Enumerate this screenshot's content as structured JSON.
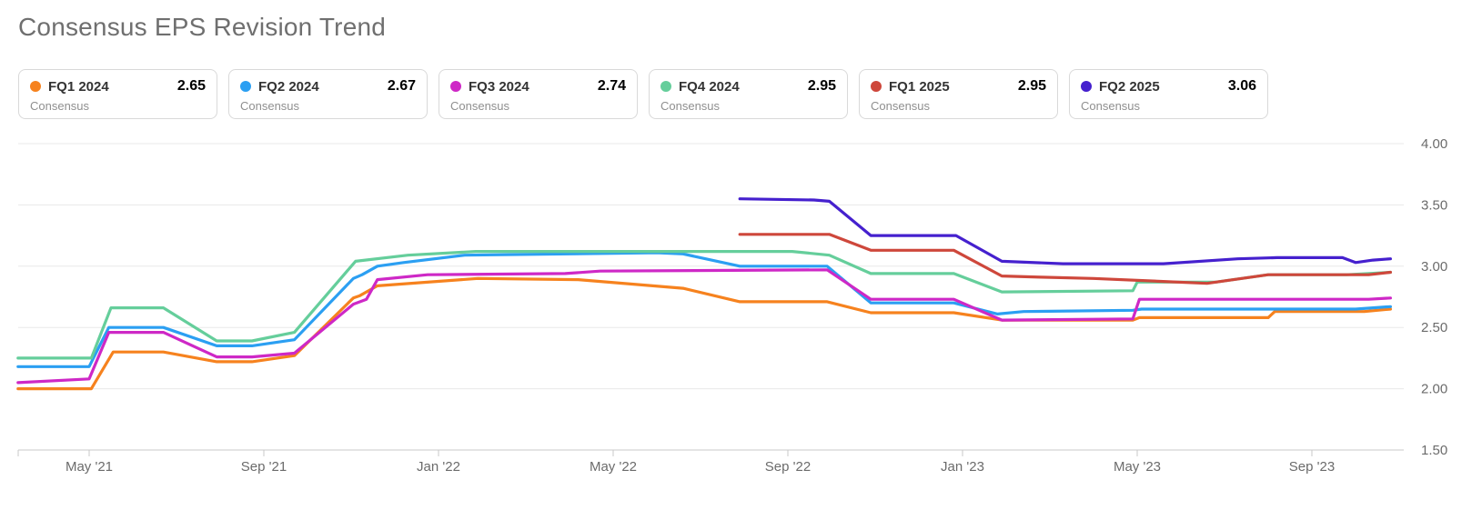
{
  "title": "Consensus EPS Revision Trend",
  "legend": [
    {
      "label": "FQ1 2024",
      "sublabel": "Consensus",
      "value": "2.65",
      "color": "#F6821E"
    },
    {
      "label": "FQ2 2024",
      "sublabel": "Consensus",
      "value": "2.67",
      "color": "#2B9FF2"
    },
    {
      "label": "FQ3 2024",
      "sublabel": "Consensus",
      "value": "2.74",
      "color": "#CE28C6"
    },
    {
      "label": "FQ4 2024",
      "sublabel": "Consensus",
      "value": "2.95",
      "color": "#65CE9B"
    },
    {
      "label": "FQ1 2025",
      "sublabel": "Consensus",
      "value": "2.95",
      "color": "#CE473B"
    },
    {
      "label": "FQ2 2025",
      "sublabel": "Consensus",
      "value": "3.06",
      "color": "#4520CE"
    }
  ],
  "chart_data": {
    "type": "line",
    "title": "Consensus EPS Revision Trend",
    "grid": "horizontal",
    "x_axis": {
      "unit": "months, 0 = May 2021",
      "range": [
        -1.63,
        29.8
      ],
      "ticks": [
        {
          "idx": 0,
          "label": "May '21"
        },
        {
          "idx": 4,
          "label": "Sep '21"
        },
        {
          "idx": 8,
          "label": "Jan '22"
        },
        {
          "idx": 12,
          "label": "May '22"
        },
        {
          "idx": 16,
          "label": "Sep '22"
        },
        {
          "idx": 20,
          "label": "Jan '23"
        },
        {
          "idx": 24,
          "label": "May '23"
        },
        {
          "idx": 28,
          "label": "Sep '23"
        }
      ]
    },
    "y_axis": {
      "position": "right",
      "range": [
        1.5,
        4.0
      ],
      "ticks": [
        "4.00",
        "3.50",
        "3.00",
        "2.50",
        "2.00",
        "1.50"
      ],
      "tick_values": [
        4.0,
        3.5,
        3.0,
        2.5,
        2.0,
        1.5
      ]
    },
    "series": [
      {
        "name": "FQ1 2024",
        "color": "#F6821E",
        "latest_value": 2.65,
        "points": [
          [
            -1.63,
            2.0
          ],
          [
            0.05,
            2.0
          ],
          [
            0.55,
            2.3
          ],
          [
            1.7,
            2.3
          ],
          [
            2.92,
            2.22
          ],
          [
            3.73,
            2.22
          ],
          [
            4.7,
            2.27
          ],
          [
            6.05,
            2.74
          ],
          [
            6.2,
            2.76
          ],
          [
            6.6,
            2.84
          ],
          [
            8.9,
            2.9
          ],
          [
            11.2,
            2.89
          ],
          [
            13.6,
            2.82
          ],
          [
            14.9,
            2.71
          ],
          [
            16.9,
            2.71
          ],
          [
            17.9,
            2.62
          ],
          [
            19.8,
            2.62
          ],
          [
            20.9,
            2.56
          ],
          [
            23.9,
            2.56
          ],
          [
            24.05,
            2.58
          ],
          [
            27.0,
            2.58
          ],
          [
            27.15,
            2.63
          ],
          [
            29.2,
            2.63
          ],
          [
            29.8,
            2.65
          ]
        ]
      },
      {
        "name": "FQ2 2024",
        "color": "#2B9FF2",
        "latest_value": 2.67,
        "points": [
          [
            -1.63,
            2.18
          ],
          [
            0.0,
            2.18
          ],
          [
            0.45,
            2.5
          ],
          [
            1.7,
            2.5
          ],
          [
            2.92,
            2.35
          ],
          [
            3.73,
            2.35
          ],
          [
            4.7,
            2.4
          ],
          [
            6.05,
            2.9
          ],
          [
            6.25,
            2.93
          ],
          [
            6.6,
            3.0
          ],
          [
            7.2,
            3.03
          ],
          [
            8.6,
            3.09
          ],
          [
            13.0,
            3.11
          ],
          [
            13.6,
            3.1
          ],
          [
            14.9,
            3.0
          ],
          [
            16.9,
            3.0
          ],
          [
            17.9,
            2.7
          ],
          [
            19.8,
            2.7
          ],
          [
            20.8,
            2.61
          ],
          [
            21.4,
            2.63
          ],
          [
            23.9,
            2.64
          ],
          [
            24.1,
            2.65
          ],
          [
            29.0,
            2.65
          ],
          [
            29.8,
            2.67
          ]
        ]
      },
      {
        "name": "FQ3 2024",
        "color": "#CE28C6",
        "latest_value": 2.74,
        "points": [
          [
            -1.63,
            2.05
          ],
          [
            0.0,
            2.08
          ],
          [
            0.45,
            2.46
          ],
          [
            1.7,
            2.46
          ],
          [
            2.92,
            2.26
          ],
          [
            3.73,
            2.26
          ],
          [
            4.7,
            2.29
          ],
          [
            6.05,
            2.69
          ],
          [
            6.35,
            2.73
          ],
          [
            6.6,
            2.89
          ],
          [
            7.75,
            2.93
          ],
          [
            10.9,
            2.94
          ],
          [
            11.7,
            2.96
          ],
          [
            16.9,
            2.97
          ],
          [
            17.9,
            2.73
          ],
          [
            19.8,
            2.73
          ],
          [
            20.9,
            2.56
          ],
          [
            23.9,
            2.57
          ],
          [
            24.05,
            2.73
          ],
          [
            29.3,
            2.73
          ],
          [
            29.8,
            2.74
          ]
        ]
      },
      {
        "name": "FQ4 2024",
        "color": "#65CE9B",
        "latest_value": 2.95,
        "points": [
          [
            -1.63,
            2.25
          ],
          [
            0.05,
            2.25
          ],
          [
            0.5,
            2.66
          ],
          [
            1.7,
            2.66
          ],
          [
            2.92,
            2.39
          ],
          [
            3.73,
            2.39
          ],
          [
            4.7,
            2.46
          ],
          [
            6.1,
            3.04
          ],
          [
            7.3,
            3.09
          ],
          [
            8.85,
            3.12
          ],
          [
            16.1,
            3.12
          ],
          [
            16.95,
            3.09
          ],
          [
            17.9,
            2.94
          ],
          [
            19.8,
            2.94
          ],
          [
            20.9,
            2.79
          ],
          [
            23.9,
            2.8
          ],
          [
            24.0,
            2.87
          ],
          [
            25.8,
            2.87
          ],
          [
            27.0,
            2.93
          ],
          [
            28.8,
            2.93
          ],
          [
            29.8,
            2.95
          ]
        ]
      },
      {
        "name": "FQ1 2025",
        "color": "#CE473B",
        "latest_value": 2.95,
        "points": [
          [
            14.9,
            3.26
          ],
          [
            16.95,
            3.26
          ],
          [
            17.9,
            3.13
          ],
          [
            19.8,
            3.13
          ],
          [
            20.9,
            2.92
          ],
          [
            21.8,
            2.91
          ],
          [
            23.0,
            2.9
          ],
          [
            25.6,
            2.86
          ],
          [
            27.0,
            2.93
          ],
          [
            29.3,
            2.93
          ],
          [
            29.8,
            2.95
          ]
        ]
      },
      {
        "name": "FQ2 2025",
        "color": "#4520CE",
        "latest_value": 3.06,
        "points": [
          [
            14.9,
            3.55
          ],
          [
            16.6,
            3.54
          ],
          [
            16.95,
            3.53
          ],
          [
            17.9,
            3.25
          ],
          [
            19.85,
            3.25
          ],
          [
            20.9,
            3.04
          ],
          [
            22.3,
            3.02
          ],
          [
            24.6,
            3.02
          ],
          [
            26.3,
            3.06
          ],
          [
            27.2,
            3.07
          ],
          [
            28.7,
            3.07
          ],
          [
            29.0,
            3.03
          ],
          [
            29.4,
            3.05
          ],
          [
            29.8,
            3.06
          ]
        ]
      }
    ]
  }
}
